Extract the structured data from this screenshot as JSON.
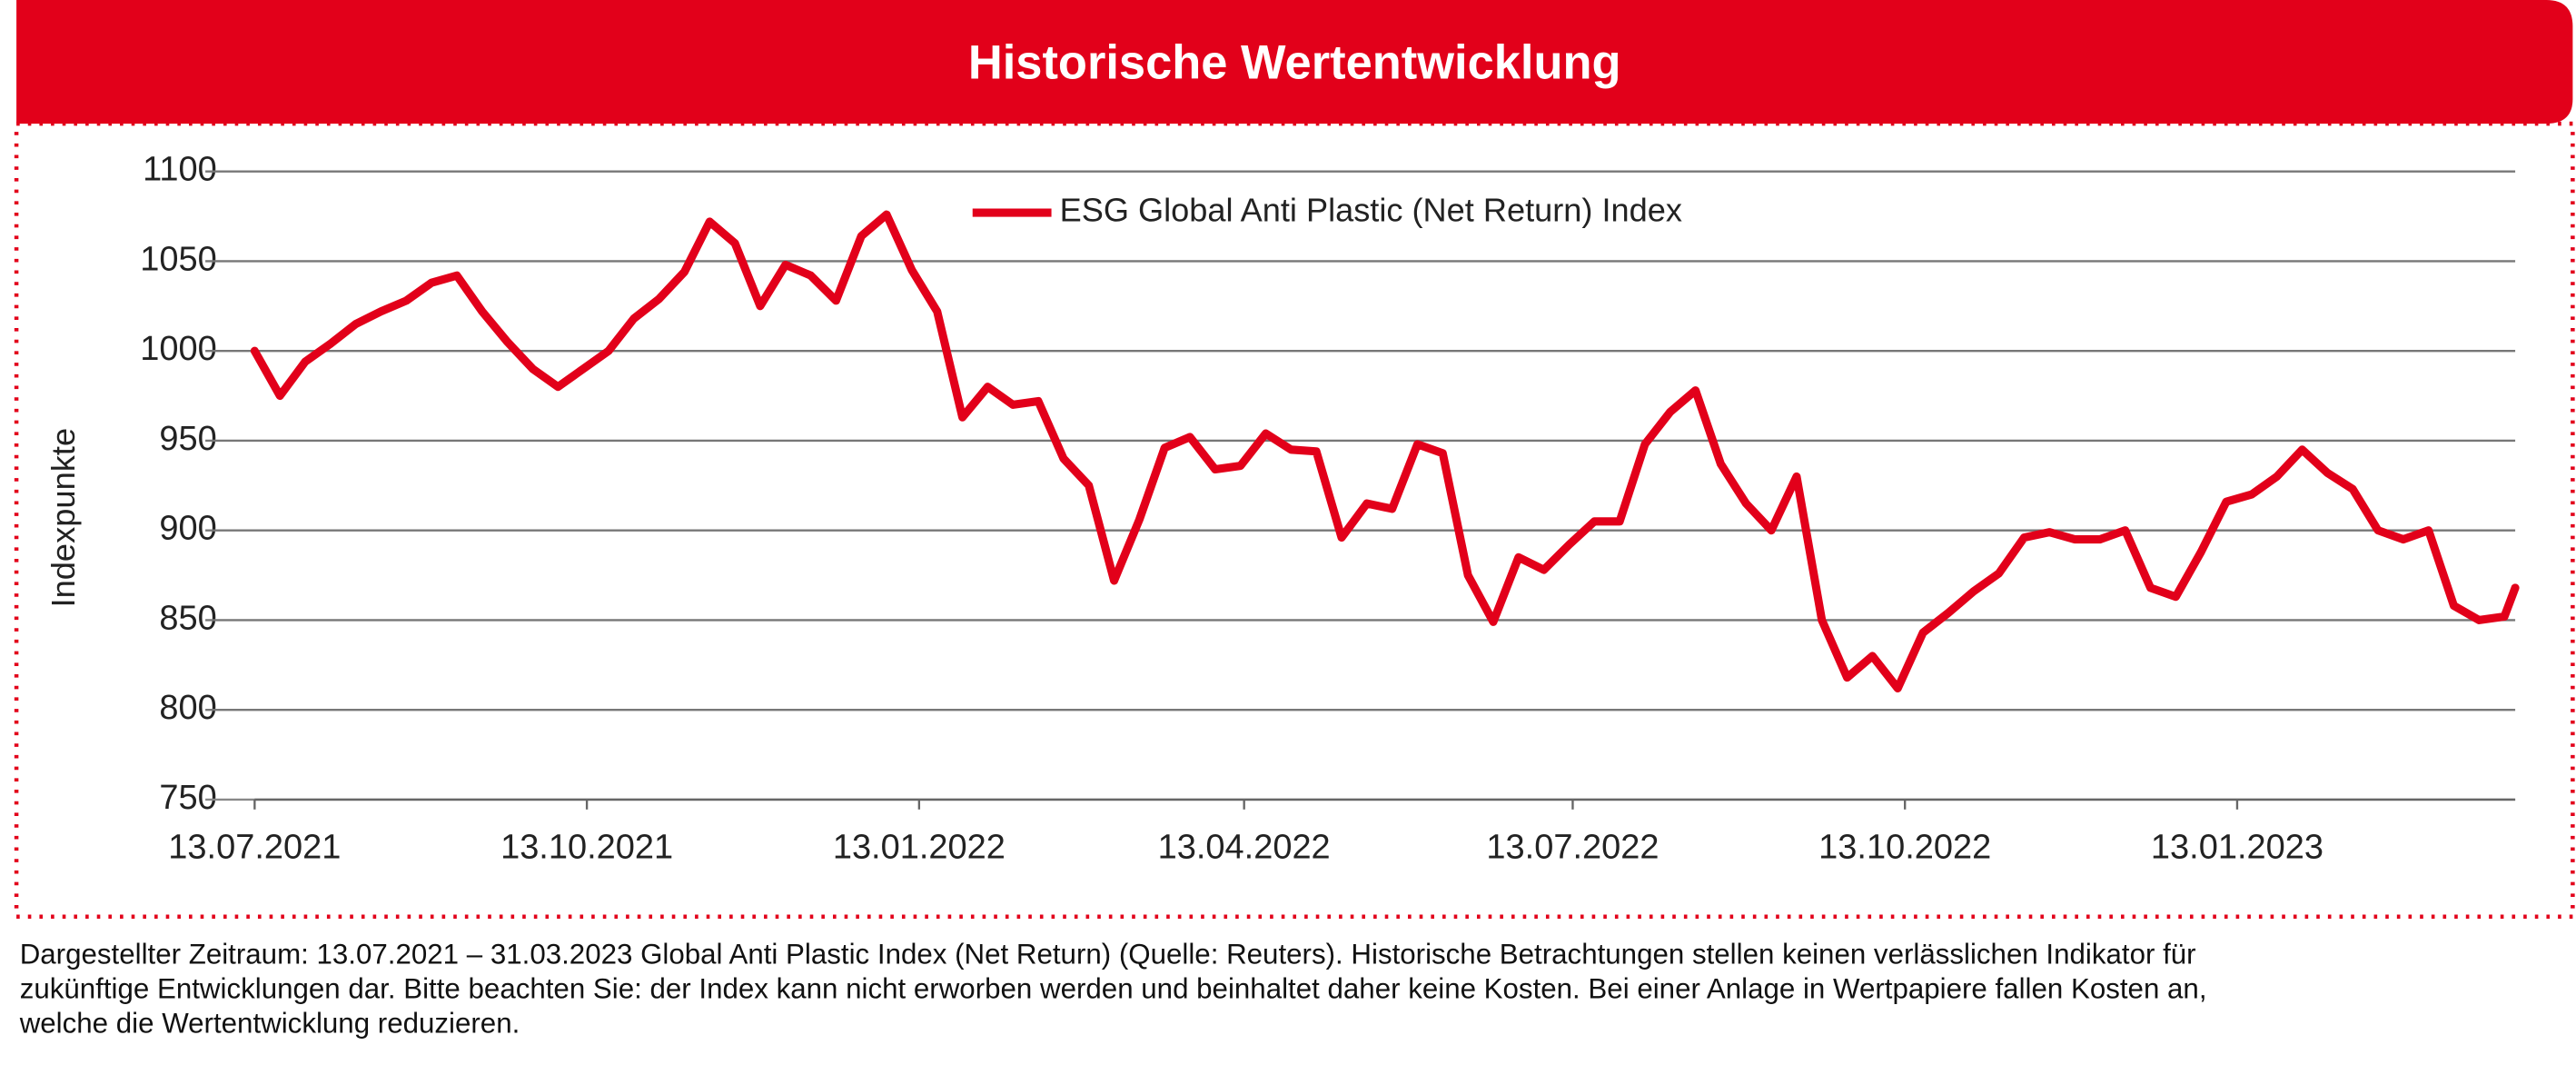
{
  "chart_data": {
    "type": "line",
    "title": "Historische Wertentwicklung",
    "y_label": "Indexpunkte",
    "x": [
      "13.07.2021",
      "20.07.2021",
      "27.07.2021",
      "03.08.2021",
      "10.08.2021",
      "17.08.2021",
      "24.08.2021",
      "31.08.2021",
      "07.09.2021",
      "14.09.2021",
      "21.09.2021",
      "28.09.2021",
      "05.10.2021",
      "12.10.2021",
      "19.10.2021",
      "26.10.2021",
      "02.11.2021",
      "09.11.2021",
      "16.11.2021",
      "23.11.2021",
      "30.11.2021",
      "07.12.2021",
      "14.12.2021",
      "21.12.2021",
      "28.12.2021",
      "04.01.2022",
      "11.01.2022",
      "18.01.2022",
      "25.01.2022",
      "01.02.2022",
      "08.02.2022",
      "15.02.2022",
      "22.02.2022",
      "01.03.2022",
      "08.03.2022",
      "15.03.2022",
      "22.03.2022",
      "29.03.2022",
      "05.04.2022",
      "12.04.2022",
      "19.04.2022",
      "26.04.2022",
      "03.05.2022",
      "10.05.2022",
      "17.05.2022",
      "24.05.2022",
      "31.05.2022",
      "07.06.2022",
      "14.06.2022",
      "21.06.2022",
      "28.06.2022",
      "05.07.2022",
      "12.07.2022",
      "19.07.2022",
      "26.07.2022",
      "02.08.2022",
      "09.08.2022",
      "16.08.2022",
      "23.08.2022",
      "30.08.2022",
      "06.09.2022",
      "13.09.2022",
      "20.09.2022",
      "27.09.2022",
      "04.10.2022",
      "11.10.2022",
      "18.10.2022",
      "25.10.2022",
      "01.11.2022",
      "08.11.2022",
      "15.11.2022",
      "22.11.2022",
      "29.11.2022",
      "06.12.2022",
      "13.12.2022",
      "20.12.2022",
      "27.12.2022",
      "03.01.2023",
      "10.01.2023",
      "17.01.2023",
      "24.01.2023",
      "31.01.2023",
      "07.02.2023",
      "14.02.2023",
      "21.02.2023",
      "28.02.2023",
      "07.03.2023",
      "14.03.2023",
      "21.03.2023",
      "28.03.2023",
      "31.03.2023"
    ],
    "series": [
      {
        "name": "ESG Global Anti Plastic (Net Return) Index",
        "color": "#e2001a",
        "values": [
          1000,
          975,
          994,
          1004,
          1015,
          1022,
          1028,
          1038,
          1042,
          1022,
          1005,
          990,
          980,
          990,
          1000,
          1018,
          1029,
          1044,
          1072,
          1060,
          1025,
          1048,
          1042,
          1028,
          1064,
          1076,
          1045,
          1022,
          963,
          980,
          970,
          972,
          940,
          925,
          872,
          906,
          946,
          952,
          934,
          936,
          954,
          945,
          944,
          896,
          915,
          912,
          948,
          943,
          875,
          849,
          885,
          878,
          892,
          905,
          905,
          948,
          966,
          978,
          937,
          915,
          900,
          930,
          850,
          818,
          830,
          812,
          843,
          854,
          866,
          876,
          896,
          899,
          895,
          895,
          900,
          868,
          863,
          888,
          916,
          920,
          930,
          945,
          932,
          923,
          900,
          895,
          900,
          858,
          850,
          852,
          868
        ]
      }
    ],
    "xlim": [
      "13.07.2021",
      "31.03.2023"
    ],
    "xticks": [
      "13.07.2021",
      "13.10.2021",
      "13.01.2022",
      "13.04.2022",
      "13.07.2022",
      "13.10.2022",
      "13.01.2023"
    ],
    "ylim": [
      750,
      1100
    ],
    "yticks": [
      750,
      800,
      850,
      900,
      950,
      1000,
      1050,
      1100
    ],
    "grid": true
  },
  "footnote": [
    "Dargestellter Zeitraum: 13.07.2021 – 31.03.2023 Global Anti Plastic Index (Net Return) (Quelle: Reuters). Historische Betrachtungen stellen keinen verlässlichen Indikator für",
    "zukünftige Entwicklungen dar. Bitte beachten Sie: der Index kann nicht erworben werden und beinhaltet daher keine Kosten. Bei einer Anlage in Wertpapiere fallen Kosten an,",
    "welche die Wertentwicklung reduzieren."
  ]
}
